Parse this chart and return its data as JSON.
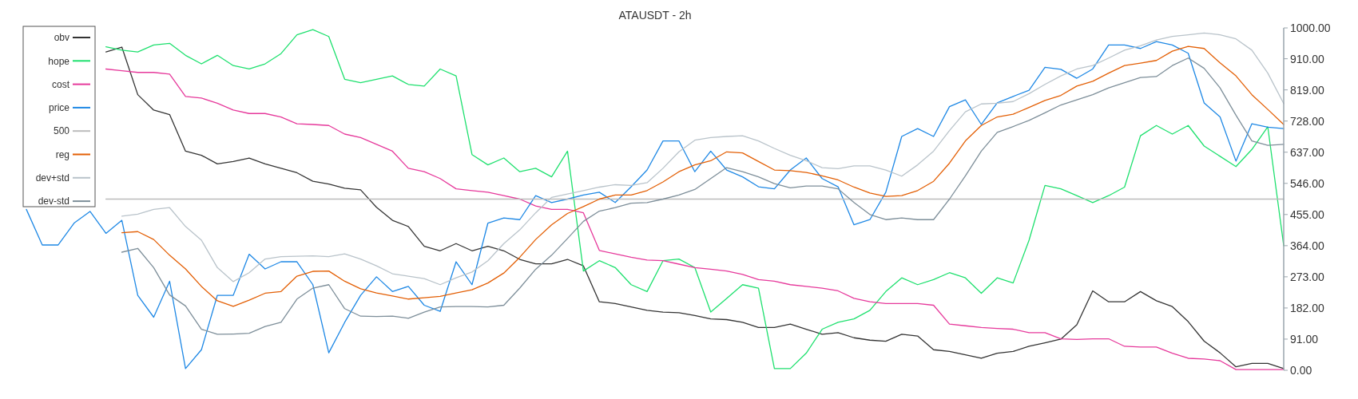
{
  "chart_data": {
    "type": "line",
    "title": "ATAUSDT - 2h",
    "categories": [
      null,
      null,
      null,
      null,
      null,
      null,
      null,
      null,
      null,
      null,
      null,
      null,
      null,
      null,
      null,
      null,
      null,
      null,
      null,
      null,
      null,
      null,
      null,
      null,
      null,
      null,
      null,
      null,
      null,
      null,
      null,
      null,
      null,
      null,
      null,
      null,
      null,
      null,
      null,
      null,
      null,
      null,
      null,
      null,
      null,
      null,
      null,
      null,
      null,
      null,
      null,
      null,
      null,
      null,
      null,
      null,
      null,
      null,
      null,
      null,
      null,
      null,
      null,
      null,
      null,
      null,
      null,
      null,
      null,
      null,
      null,
      null,
      null,
      null,
      null,
      null,
      null,
      null,
      null,
      null
    ],
    "series": [
      {
        "name": "obv",
        "color": "#333333",
        "values": [
          null,
          null,
          null,
          null,
          null,
          930,
          944,
          805,
          760,
          747,
          640,
          628,
          603,
          610,
          620,
          603,
          590,
          577,
          552,
          544,
          532,
          527,
          476,
          438,
          420,
          362,
          349,
          370,
          349,
          362,
          349,
          324,
          311,
          311,
          324,
          305,
          200,
          195,
          185,
          175,
          170,
          168,
          160,
          150,
          148,
          140,
          125,
          125,
          135,
          120,
          105,
          110,
          95,
          88,
          85,
          105,
          100,
          60,
          55,
          45,
          35,
          50,
          55,
          70,
          80,
          91,
          133,
          232,
          200,
          200,
          230,
          203,
          186,
          142,
          85,
          51,
          10,
          20,
          20,
          5
        ]
      },
      {
        "name": "hope",
        "color": "#1ee06e",
        "values": [
          null,
          null,
          null,
          null,
          null,
          945,
          935,
          930,
          950,
          955,
          920,
          895,
          920,
          890,
          880,
          895,
          925,
          980,
          995,
          975,
          850,
          840,
          850,
          860,
          835,
          830,
          880,
          860,
          630,
          600,
          620,
          580,
          590,
          565,
          640,
          290,
          320,
          300,
          250,
          230,
          320,
          325,
          300,
          170,
          210,
          250,
          240,
          5,
          5,
          50,
          120,
          140,
          150,
          175,
          230,
          270,
          250,
          265,
          285,
          270,
          225,
          270,
          255,
          380,
          540,
          530,
          510,
          490,
          510,
          535,
          685,
          715,
          690,
          715,
          655,
          625,
          595,
          645,
          711,
          364
        ]
      },
      {
        "name": "cost",
        "color": "#e6399b",
        "values": [
          null,
          null,
          null,
          null,
          null,
          880,
          875,
          870,
          870,
          865,
          800,
          795,
          780,
          760,
          750,
          750,
          740,
          720,
          718,
          715,
          690,
          680,
          660,
          640,
          590,
          580,
          560,
          530,
          525,
          520,
          510,
          500,
          480,
          470,
          470,
          460,
          350,
          340,
          330,
          322,
          320,
          310,
          300,
          295,
          290,
          280,
          265,
          260,
          250,
          245,
          240,
          232,
          210,
          200,
          195,
          195,
          195,
          190,
          135,
          130,
          125,
          122,
          120,
          110,
          110,
          92,
          90,
          92,
          92,
          70,
          68,
          68,
          50,
          35,
          33,
          28,
          2,
          2,
          2,
          2
        ]
      },
      {
        "name": "price",
        "color": "#1e88e5",
        "values": [
          470,
          366,
          366,
          430,
          464,
          400,
          438,
          219,
          155,
          260,
          5,
          60,
          219,
          219,
          339,
          296,
          317,
          317,
          250,
          51,
          140,
          219,
          273,
          230,
          245,
          190,
          172,
          317,
          250,
          430,
          445,
          440,
          510,
          490,
          500,
          512,
          520,
          490,
          536,
          585,
          670,
          670,
          580,
          640,
          585,
          565,
          536,
          530,
          585,
          620,
          560,
          536,
          425,
          440,
          520,
          683,
          706,
          683,
          770,
          790,
          718,
          781,
          800,
          818,
          885,
          879,
          853,
          880,
          950,
          950,
          940,
          960,
          950,
          926,
          781,
          740,
          611,
          720,
          710,
          706
        ]
      },
      {
        "name": "500",
        "color": "#bbbbbb",
        "values": [
          null,
          null,
          null,
          null,
          null,
          500,
          500,
          500,
          500,
          500,
          500,
          500,
          500,
          500,
          500,
          500,
          500,
          500,
          500,
          500,
          500,
          500,
          500,
          500,
          500,
          500,
          500,
          500,
          500,
          500,
          500,
          500,
          500,
          500,
          500,
          500,
          500,
          500,
          500,
          500,
          500,
          500,
          500,
          500,
          500,
          500,
          500,
          500,
          500,
          500,
          500,
          500,
          500,
          500,
          500,
          500,
          500,
          500,
          500,
          500,
          500,
          500,
          500,
          500,
          500,
          500,
          500,
          500,
          500,
          500,
          500,
          500,
          500,
          500,
          500,
          500,
          500,
          500,
          500,
          500
        ]
      },
      {
        "name": "reg",
        "color": "#e35f05",
        "values": [
          null,
          null,
          null,
          null,
          null,
          null,
          402,
          405,
          382,
          336,
          296,
          245,
          203,
          187,
          205,
          225,
          230,
          275,
          289,
          290,
          260,
          238,
          226,
          217,
          208,
          212,
          216,
          226,
          235,
          255,
          284,
          330,
          382,
          425,
          458,
          478,
          500,
          512,
          512,
          525,
          550,
          580,
          600,
          612,
          638,
          635,
          610,
          585,
          583,
          578,
          568,
          556,
          535,
          518,
          508,
          510,
          525,
          552,
          605,
          670,
          715,
          740,
          748,
          768,
          788,
          803,
          830,
          844,
          868,
          890,
          897,
          905,
          932,
          946,
          940,
          898,
          860,
          805,
          762,
          718
        ]
      },
      {
        "name": "dev+std",
        "color": "#b9c3ca",
        "values": [
          null,
          null,
          null,
          null,
          null,
          null,
          450,
          456,
          470,
          475,
          420,
          380,
          300,
          259,
          285,
          325,
          332,
          333,
          334,
          332,
          340,
          325,
          305,
          282,
          275,
          268,
          250,
          270,
          287,
          320,
          370,
          410,
          460,
          505,
          515,
          525,
          535,
          542,
          540,
          548,
          590,
          638,
          672,
          680,
          683,
          685,
          670,
          648,
          628,
          612,
          592,
          589,
          597,
          597,
          585,
          567,
          600,
          640,
          700,
          755,
          778,
          780,
          785,
          808,
          835,
          860,
          880,
          890,
          912,
          935,
          948,
          965,
          975,
          980,
          985,
          980,
          968,
          935,
          868,
          779
        ]
      },
      {
        "name": "dev-std",
        "color": "#7d8e99",
        "values": [
          null,
          null,
          null,
          null,
          null,
          null,
          345,
          356,
          300,
          220,
          188,
          120,
          105,
          106,
          108,
          128,
          140,
          208,
          240,
          250,
          180,
          158,
          157,
          158,
          152,
          170,
          185,
          186,
          186,
          185,
          190,
          240,
          295,
          336,
          385,
          435,
          465,
          475,
          488,
          490,
          500,
          512,
          528,
          560,
          592,
          580,
          565,
          545,
          533,
          538,
          538,
          530,
          490,
          455,
          440,
          445,
          440,
          440,
          500,
          568,
          640,
          695,
          712,
          730,
          752,
          775,
          790,
          805,
          825,
          840,
          855,
          858,
          890,
          912,
          882,
          825,
          745,
          670,
          657,
          660
        ]
      }
    ],
    "ylim": [
      0,
      1000
    ],
    "yticks": [
      {
        "value": 0,
        "label": "0.00"
      },
      {
        "value": 91,
        "label": "91.00"
      },
      {
        "value": 182,
        "label": "182.00"
      },
      {
        "value": 273,
        "label": "273.00"
      },
      {
        "value": 364,
        "label": "364.00"
      },
      {
        "value": 455,
        "label": "455.00"
      },
      {
        "value": 546,
        "label": "546.00"
      },
      {
        "value": 637,
        "label": "637.00"
      },
      {
        "value": 728,
        "label": "728.00"
      },
      {
        "value": 819,
        "label": "819.00"
      },
      {
        "value": 910,
        "label": "910.00"
      },
      {
        "value": 1000,
        "label": "1000.00"
      }
    ],
    "tick_labels": "y",
    "legend": "top left",
    "grid": false,
    "marker": "none",
    "line_style": "solid"
  }
}
